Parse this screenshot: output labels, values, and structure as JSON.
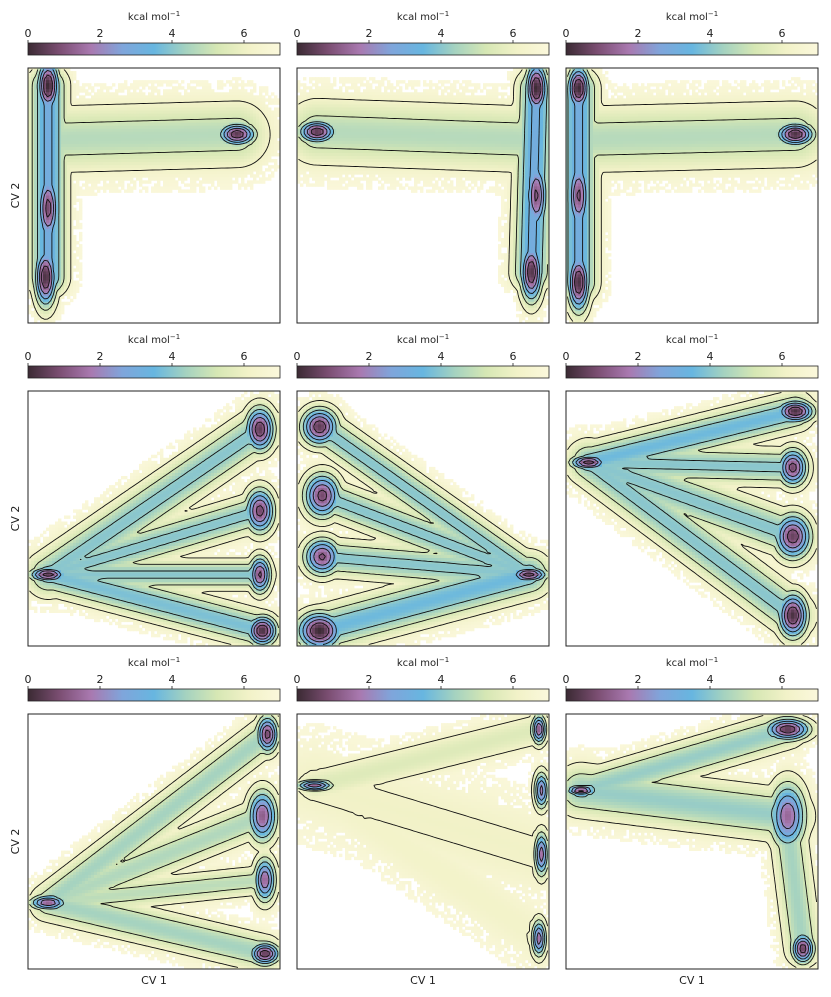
{
  "figure": {
    "layout": "3x3 grid of free energy surfaces with colorbars",
    "colorscale": [
      "#3b2a33",
      "#7b4e72",
      "#a979b0",
      "#7fa5db",
      "#67b6e0",
      "#a4d2c0",
      "#d6e7b4",
      "#f2f2c8",
      "#fbf8dc"
    ],
    "contour_color": "#111111"
  },
  "chart_data": [
    {
      "type": "heatmap",
      "panel": "A1",
      "title": "",
      "xlabel": "",
      "ylabel": "CV 2",
      "colorbar": {
        "label": "kcal mol",
        "label_sup": "−1",
        "range": [
          0,
          7
        ],
        "ticks": [
          0,
          2,
          4,
          6
        ]
      },
      "minima": [
        {
          "cv1": 0.08,
          "cv2": 0.93,
          "sx": 0.03,
          "sy": 0.07,
          "depth": 7.0
        },
        {
          "cv1": 0.08,
          "cv2": 0.45,
          "sx": 0.03,
          "sy": 0.1,
          "depth": 6.2
        },
        {
          "cv1": 0.07,
          "cv2": 0.18,
          "sx": 0.03,
          "sy": 0.08,
          "depth": 6.8
        },
        {
          "cv1": 0.83,
          "cv2": 0.74,
          "sx": 0.05,
          "sy": 0.03,
          "depth": 6.6
        }
      ],
      "channels": [
        {
          "from": [
            0.08,
            0.93
          ],
          "to": [
            0.08,
            0.18
          ],
          "width": 0.05,
          "depth": 4.0
        },
        {
          "from": [
            0.1,
            0.72
          ],
          "to": [
            0.83,
            0.74
          ],
          "width": 0.09,
          "depth": 2.3
        }
      ]
    },
    {
      "type": "heatmap",
      "panel": "A2",
      "title": "",
      "xlabel": "",
      "ylabel": "",
      "colorbar": {
        "label": "kcal mol",
        "label_sup": "−1",
        "range": [
          0,
          7
        ],
        "ticks": [
          0,
          2,
          4,
          6
        ]
      },
      "minima": [
        {
          "cv1": 0.95,
          "cv2": 0.92,
          "sx": 0.03,
          "sy": 0.07,
          "depth": 7.0
        },
        {
          "cv1": 0.95,
          "cv2": 0.5,
          "sx": 0.03,
          "sy": 0.1,
          "depth": 6.0
        },
        {
          "cv1": 0.93,
          "cv2": 0.2,
          "sx": 0.03,
          "sy": 0.08,
          "depth": 6.7
        },
        {
          "cv1": 0.08,
          "cv2": 0.75,
          "sx": 0.05,
          "sy": 0.03,
          "depth": 6.6
        }
      ],
      "channels": [
        {
          "from": [
            0.95,
            0.92
          ],
          "to": [
            0.93,
            0.2
          ],
          "width": 0.05,
          "depth": 4.0
        },
        {
          "from": [
            0.08,
            0.75
          ],
          "to": [
            0.92,
            0.72
          ],
          "width": 0.09,
          "depth": 2.3
        }
      ]
    },
    {
      "type": "heatmap",
      "panel": "A3",
      "title": "",
      "xlabel": "",
      "ylabel": "",
      "colorbar": {
        "label": "kcal mol",
        "label_sup": "−1",
        "range": [
          0,
          7
        ],
        "ticks": [
          0,
          2,
          4,
          6
        ]
      },
      "minima": [
        {
          "cv1": 0.05,
          "cv2": 0.92,
          "sx": 0.03,
          "sy": 0.06,
          "depth": 7.0
        },
        {
          "cv1": 0.05,
          "cv2": 0.5,
          "sx": 0.03,
          "sy": 0.1,
          "depth": 6.0
        },
        {
          "cv1": 0.05,
          "cv2": 0.16,
          "sx": 0.03,
          "sy": 0.08,
          "depth": 6.8
        },
        {
          "cv1": 0.91,
          "cv2": 0.74,
          "sx": 0.05,
          "sy": 0.03,
          "depth": 6.8
        }
      ],
      "channels": [
        {
          "from": [
            0.05,
            0.92
          ],
          "to": [
            0.05,
            0.16
          ],
          "width": 0.05,
          "depth": 4.0
        },
        {
          "from": [
            0.07,
            0.72
          ],
          "to": [
            0.91,
            0.74
          ],
          "width": 0.09,
          "depth": 2.3
        }
      ]
    },
    {
      "type": "heatmap",
      "panel": "B1",
      "title": "",
      "xlabel": "",
      "ylabel": "CV 2",
      "colorbar": {
        "label": "kcal mol",
        "label_sup": "−1",
        "range": [
          0,
          7
        ],
        "ticks": [
          0,
          2,
          4,
          6
        ]
      },
      "minima": [
        {
          "cv1": 0.92,
          "cv2": 0.85,
          "sx": 0.04,
          "sy": 0.06,
          "depth": 6.5
        },
        {
          "cv1": 0.92,
          "cv2": 0.53,
          "sx": 0.04,
          "sy": 0.06,
          "depth": 6.2
        },
        {
          "cv1": 0.92,
          "cv2": 0.28,
          "sx": 0.03,
          "sy": 0.05,
          "depth": 6.0
        },
        {
          "cv1": 0.93,
          "cv2": 0.06,
          "sx": 0.04,
          "sy": 0.04,
          "depth": 6.8
        },
        {
          "cv1": 0.08,
          "cv2": 0.28,
          "sx": 0.05,
          "sy": 0.02,
          "depth": 6.4
        }
      ],
      "channels": [
        {
          "from": [
            0.08,
            0.28
          ],
          "to": [
            0.92,
            0.85
          ],
          "width": 0.06,
          "depth": 3.0
        },
        {
          "from": [
            0.08,
            0.28
          ],
          "to": [
            0.92,
            0.53
          ],
          "width": 0.05,
          "depth": 3.0
        },
        {
          "from": [
            0.08,
            0.28
          ],
          "to": [
            0.92,
            0.28
          ],
          "width": 0.04,
          "depth": 3.0
        },
        {
          "from": [
            0.08,
            0.28
          ],
          "to": [
            0.93,
            0.06
          ],
          "width": 0.05,
          "depth": 3.2
        }
      ]
    },
    {
      "type": "heatmap",
      "panel": "B2",
      "title": "",
      "xlabel": "",
      "ylabel": "",
      "colorbar": {
        "label": "kcal mol",
        "label_sup": "−1",
        "range": [
          0,
          7
        ],
        "ticks": [
          0,
          2,
          4,
          6
        ]
      },
      "minima": [
        {
          "cv1": 0.09,
          "cv2": 0.86,
          "sx": 0.05,
          "sy": 0.05,
          "depth": 6.5
        },
        {
          "cv1": 0.1,
          "cv2": 0.59,
          "sx": 0.05,
          "sy": 0.06,
          "depth": 6.2
        },
        {
          "cv1": 0.1,
          "cv2": 0.35,
          "sx": 0.05,
          "sy": 0.05,
          "depth": 6.0
        },
        {
          "cv1": 0.09,
          "cv2": 0.06,
          "sx": 0.06,
          "sy": 0.05,
          "depth": 7.0
        },
        {
          "cv1": 0.92,
          "cv2": 0.28,
          "sx": 0.05,
          "sy": 0.02,
          "depth": 6.4
        }
      ],
      "channels": [
        {
          "from": [
            0.92,
            0.28
          ],
          "to": [
            0.09,
            0.86
          ],
          "width": 0.05,
          "depth": 3.0
        },
        {
          "from": [
            0.92,
            0.28
          ],
          "to": [
            0.1,
            0.59
          ],
          "width": 0.05,
          "depth": 3.0
        },
        {
          "from": [
            0.92,
            0.28
          ],
          "to": [
            0.1,
            0.35
          ],
          "width": 0.05,
          "depth": 3.0
        },
        {
          "from": [
            0.92,
            0.28
          ],
          "to": [
            0.09,
            0.06
          ],
          "width": 0.06,
          "depth": 3.4
        }
      ]
    },
    {
      "type": "heatmap",
      "panel": "B3",
      "title": "",
      "xlabel": "",
      "ylabel": "",
      "colorbar": {
        "label": "kcal mol",
        "label_sup": "−1",
        "range": [
          0,
          7
        ],
        "ticks": [
          0,
          2,
          4,
          6
        ]
      },
      "minima": [
        {
          "cv1": 0.91,
          "cv2": 0.92,
          "sx": 0.05,
          "sy": 0.03,
          "depth": 6.8
        },
        {
          "cv1": 0.9,
          "cv2": 0.7,
          "sx": 0.04,
          "sy": 0.05,
          "depth": 6.2
        },
        {
          "cv1": 0.9,
          "cv2": 0.43,
          "sx": 0.05,
          "sy": 0.06,
          "depth": 6.4
        },
        {
          "cv1": 0.9,
          "cv2": 0.12,
          "sx": 0.04,
          "sy": 0.06,
          "depth": 6.8
        },
        {
          "cv1": 0.09,
          "cv2": 0.72,
          "sx": 0.05,
          "sy": 0.02,
          "depth": 6.4
        }
      ],
      "channels": [
        {
          "from": [
            0.09,
            0.72
          ],
          "to": [
            0.91,
            0.92
          ],
          "width": 0.05,
          "depth": 3.4
        },
        {
          "from": [
            0.09,
            0.72
          ],
          "to": [
            0.9,
            0.7
          ],
          "width": 0.05,
          "depth": 3.0
        },
        {
          "from": [
            0.09,
            0.72
          ],
          "to": [
            0.9,
            0.43
          ],
          "width": 0.06,
          "depth": 3.0
        },
        {
          "from": [
            0.09,
            0.72
          ],
          "to": [
            0.9,
            0.12
          ],
          "width": 0.06,
          "depth": 3.0
        }
      ]
    },
    {
      "type": "heatmap",
      "panel": "C1",
      "title": "",
      "xlabel": "CV 1",
      "ylabel": "CV 2",
      "colorbar": {
        "label": "kcal mol",
        "label_sup": "−1",
        "range": [
          0,
          7
        ],
        "ticks": [
          0,
          2,
          4,
          6
        ]
      },
      "minima": [
        {
          "cv1": 0.95,
          "cv2": 0.92,
          "sx": 0.03,
          "sy": 0.05,
          "depth": 6.2
        },
        {
          "cv1": 0.93,
          "cv2": 0.6,
          "sx": 0.04,
          "sy": 0.07,
          "depth": 5.8
        },
        {
          "cv1": 0.94,
          "cv2": 0.35,
          "sx": 0.03,
          "sy": 0.06,
          "depth": 5.6
        },
        {
          "cv1": 0.94,
          "cv2": 0.06,
          "sx": 0.04,
          "sy": 0.03,
          "depth": 6.5
        },
        {
          "cv1": 0.08,
          "cv2": 0.26,
          "sx": 0.05,
          "sy": 0.02,
          "depth": 5.8
        }
      ],
      "channels": [
        {
          "from": [
            0.08,
            0.26
          ],
          "to": [
            0.95,
            0.92
          ],
          "width": 0.05,
          "depth": 2.6
        },
        {
          "from": [
            0.08,
            0.26
          ],
          "to": [
            0.93,
            0.6
          ],
          "width": 0.05,
          "depth": 2.4
        },
        {
          "from": [
            0.08,
            0.26
          ],
          "to": [
            0.94,
            0.35
          ],
          "width": 0.04,
          "depth": 2.2
        },
        {
          "from": [
            0.08,
            0.26
          ],
          "to": [
            0.94,
            0.06
          ],
          "width": 0.05,
          "depth": 2.6
        }
      ]
    },
    {
      "type": "heatmap",
      "panel": "C2",
      "title": "",
      "xlabel": "CV 1",
      "ylabel": "",
      "colorbar": {
        "label": "kcal mol",
        "label_sup": "−1",
        "range": [
          0,
          7
        ],
        "ticks": [
          0,
          2,
          4,
          6
        ]
      },
      "minima": [
        {
          "cv1": 0.96,
          "cv2": 0.94,
          "sx": 0.02,
          "sy": 0.04,
          "depth": 5.8
        },
        {
          "cv1": 0.97,
          "cv2": 0.7,
          "sx": 0.02,
          "sy": 0.05,
          "depth": 5.2
        },
        {
          "cv1": 0.97,
          "cv2": 0.45,
          "sx": 0.02,
          "sy": 0.06,
          "depth": 5.4
        },
        {
          "cv1": 0.96,
          "cv2": 0.12,
          "sx": 0.02,
          "sy": 0.05,
          "depth": 5.4
        },
        {
          "cv1": 0.07,
          "cv2": 0.72,
          "sx": 0.05,
          "sy": 0.015,
          "depth": 5.6
        }
      ],
      "channels": [
        {
          "from": [
            0.07,
            0.72
          ],
          "to": [
            0.96,
            0.94
          ],
          "width": 0.05,
          "depth": 1.5
        },
        {
          "from": [
            0.07,
            0.72
          ],
          "to": [
            0.97,
            0.45
          ],
          "width": 0.12,
          "depth": 0.9
        },
        {
          "from": [
            0.07,
            0.72
          ],
          "to": [
            0.96,
            0.12
          ],
          "width": 0.08,
          "depth": 0.8
        }
      ]
    },
    {
      "type": "heatmap",
      "panel": "C3",
      "title": "",
      "xlabel": "CV 1",
      "ylabel": "",
      "colorbar": {
        "label": "kcal mol",
        "label_sup": "−1",
        "range": [
          0,
          7
        ],
        "ticks": [
          0,
          2,
          4,
          6
        ]
      },
      "minima": [
        {
          "cv1": 0.88,
          "cv2": 0.94,
          "sx": 0.06,
          "sy": 0.03,
          "depth": 6.6
        },
        {
          "cv1": 0.88,
          "cv2": 0.6,
          "sx": 0.05,
          "sy": 0.09,
          "depth": 5.6
        },
        {
          "cv1": 0.94,
          "cv2": 0.08,
          "sx": 0.03,
          "sy": 0.04,
          "depth": 6.4
        },
        {
          "cv1": 0.06,
          "cv2": 0.7,
          "sx": 0.04,
          "sy": 0.015,
          "depth": 6.2
        }
      ],
      "channels": [
        {
          "from": [
            0.06,
            0.7
          ],
          "to": [
            0.88,
            0.94
          ],
          "width": 0.05,
          "depth": 2.8
        },
        {
          "from": [
            0.06,
            0.7
          ],
          "to": [
            0.88,
            0.6
          ],
          "width": 0.07,
          "depth": 2.8
        },
        {
          "from": [
            0.88,
            0.55
          ],
          "to": [
            0.94,
            0.08
          ],
          "width": 0.05,
          "depth": 2.6
        }
      ]
    }
  ]
}
